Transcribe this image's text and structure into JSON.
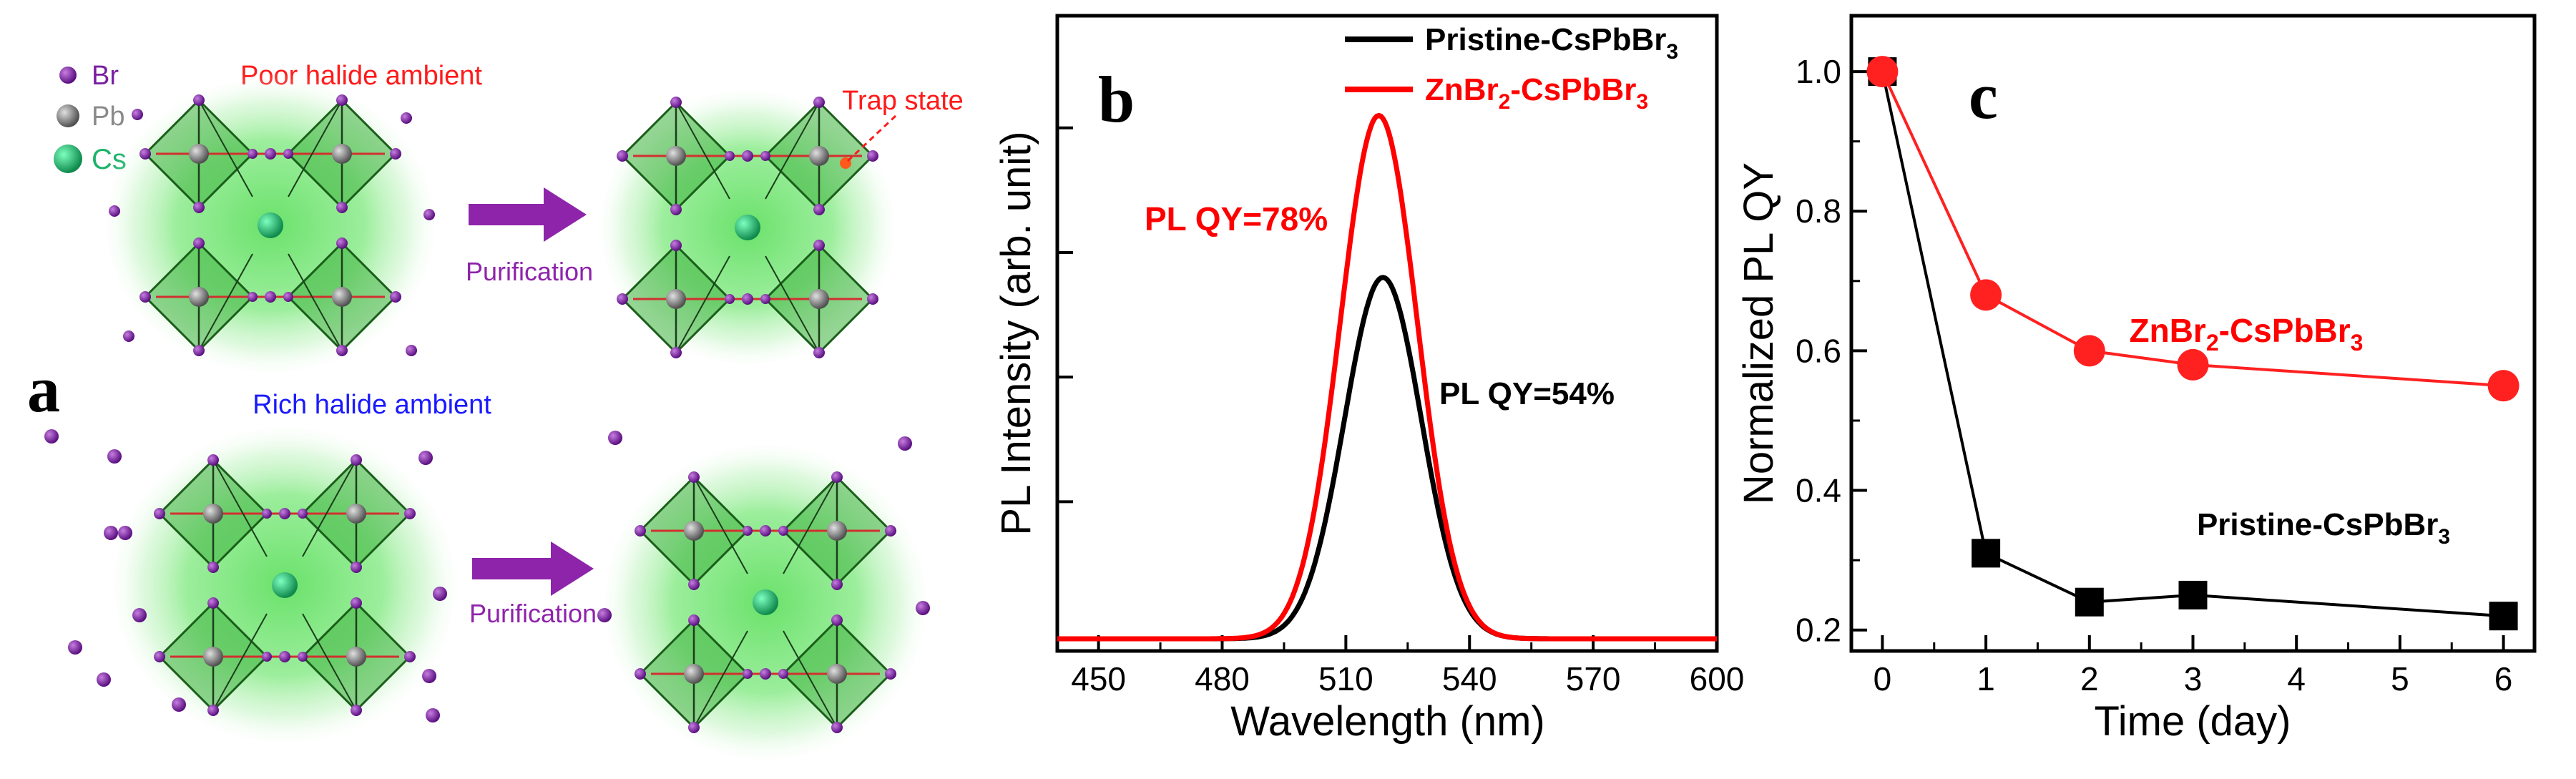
{
  "panel_a": {
    "panel_letter": "a",
    "legend": {
      "br": "Br",
      "pb": "Pb",
      "cs": "Cs"
    },
    "top_title": "Poor halide ambient",
    "bottom_title": "Rich halide ambient",
    "trap_label": "Trap state",
    "arrow_label_top": "Purification",
    "arrow_label_bottom": "Purification",
    "colors": {
      "br": "#7b1fa2",
      "pb": "#8a8a8a",
      "cs": "#1db36b",
      "glow": "#5ee05e",
      "arrow": "#8e24aa",
      "poor_title": "#ff1a1a",
      "rich_title": "#1a1aff"
    }
  },
  "chart_data": [
    {
      "type": "line",
      "panel_letter": "b",
      "xlabel": "Wavelength (nm)",
      "ylabel": "PL Intensity (arb. unit)",
      "xlim": [
        440,
        600
      ],
      "xticks": [
        "450",
        "480",
        "510",
        "540",
        "570",
        "600"
      ],
      "ylim": [
        0,
        1.0
      ],
      "legend": [
        {
          "prefix": "Pristine-CsPbBr",
          "sub": "3",
          "suffix": "",
          "color": "#000000"
        },
        {
          "prefix": "ZnBr",
          "sub": "2",
          "suffix": "-CsPbBr",
          "sub2": "3",
          "color": "#ff0000"
        }
      ],
      "series": [
        {
          "name": "Pristine-CsPbBr3",
          "color": "#000000",
          "peak_wavelength": 519,
          "peak_intensity": 0.58,
          "fwhm": 22
        },
        {
          "name": "ZnBr2-CsPbBr3",
          "color": "#ff0000",
          "peak_wavelength": 518,
          "peak_intensity": 0.84,
          "fwhm": 22
        }
      ],
      "annotations": [
        {
          "text": "PL QY=78%",
          "color": "#ff0000"
        },
        {
          "text": "PL QY=54%",
          "color": "#000000"
        }
      ]
    },
    {
      "type": "line",
      "panel_letter": "c",
      "xlabel": "Time (day)",
      "ylabel": "Normalized PL QY",
      "xlim": [
        -0.3,
        6.3
      ],
      "ylim": [
        0.17,
        1.08
      ],
      "xticks": [
        "0",
        "1",
        "2",
        "3",
        "4",
        "5",
        "6"
      ],
      "yticks": [
        "0.2",
        "0.4",
        "0.6",
        "0.8",
        "1.0"
      ],
      "series": [
        {
          "name": "ZnBr2-CsPbBr3",
          "color": "#ff2020",
          "marker": "circle",
          "x": [
            0,
            1,
            2,
            3,
            6
          ],
          "y": [
            1.0,
            0.68,
            0.6,
            0.58,
            0.55
          ]
        },
        {
          "name": "Pristine-CsPbBr3",
          "color": "#000000",
          "marker": "square",
          "x": [
            0,
            1,
            2,
            3,
            6
          ],
          "y": [
            1.0,
            0.31,
            0.24,
            0.25,
            0.22
          ]
        }
      ],
      "labels": [
        {
          "prefix": "ZnBr",
          "sub": "2",
          "suffix": "-CsPbBr",
          "sub2": "3",
          "color": "#ff0000"
        },
        {
          "prefix": "Pristine-CsPbBr",
          "sub": "3",
          "suffix": "",
          "sub2": "",
          "color": "#000000"
        }
      ]
    }
  ]
}
